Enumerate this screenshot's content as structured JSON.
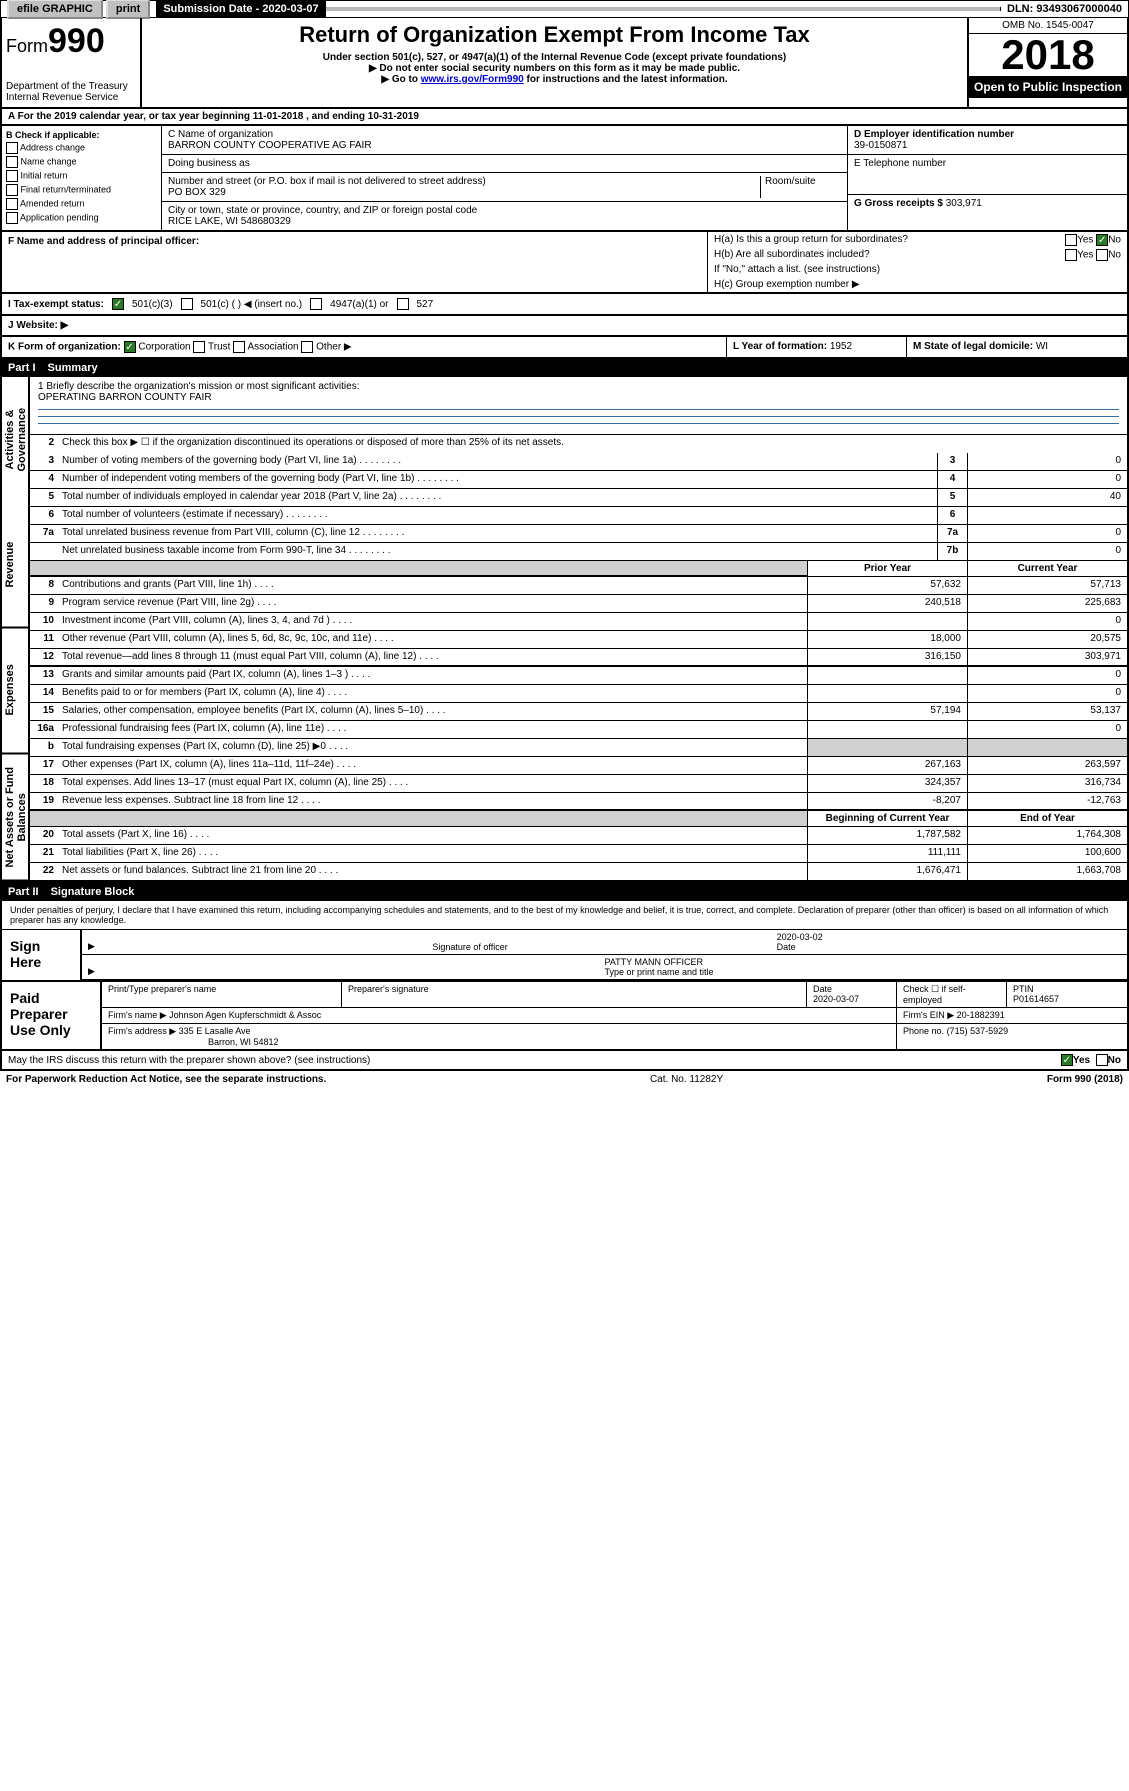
{
  "topbar": {
    "efile": "efile GRAPHIC",
    "print": "print",
    "sub_label": "Submission Date - 2020-03-07",
    "dln": "DLN: 93493067000040"
  },
  "header": {
    "form_prefix": "Form",
    "form_num": "990",
    "dept": "Department of the Treasury",
    "irs": "Internal Revenue Service",
    "title": "Return of Organization Exempt From Income Tax",
    "sub1": "Under section 501(c), 527, or 4947(a)(1) of the Internal Revenue Code (except private foundations)",
    "sub2": "▶ Do not enter social security numbers on this form as it may be made public.",
    "sub3_pre": "▶ Go to ",
    "sub3_link": "www.irs.gov/Form990",
    "sub3_post": " for instructions and the latest information.",
    "omb": "OMB No. 1545-0047",
    "year": "2018",
    "open": "Open to Public Inspection"
  },
  "row_a": "A For the 2019 calendar year, or tax year beginning 11-01-2018   , and ending 10-31-2019",
  "box_b": {
    "title": "B Check if applicable:",
    "opts": [
      "Address change",
      "Name change",
      "Initial return",
      "Final return/terminated",
      "Amended return",
      "Application pending"
    ]
  },
  "box_c": {
    "name_label": "C Name of organization",
    "name": "BARRON COUNTY COOPERATIVE AG FAIR",
    "dba_label": "Doing business as",
    "addr_label": "Number and street (or P.O. box if mail is not delivered to street address)",
    "addr": "PO BOX 329",
    "room_label": "Room/suite",
    "city_label": "City or town, state or province, country, and ZIP or foreign postal code",
    "city": "RICE LAKE, WI  548680329"
  },
  "box_d": {
    "label": "D Employer identification number",
    "val": "39-0150871"
  },
  "box_e": {
    "label": "E Telephone number"
  },
  "box_g": {
    "label": "G Gross receipts $",
    "val": "303,971"
  },
  "box_f": "F  Name and address of principal officer:",
  "box_h": {
    "a": "H(a)  Is this a group return for subordinates?",
    "b": "H(b)  Are all subordinates included?",
    "b_note": "If \"No,\" attach a list. (see instructions)",
    "c": "H(c)  Group exemption number ▶",
    "yes": "Yes",
    "no": "No"
  },
  "tax_status": {
    "label": "I  Tax-exempt status:",
    "c3": "501(c)(3)",
    "c": "501(c) (   ) ◀ (insert no.)",
    "a1": "4947(a)(1) or",
    "s527": "527"
  },
  "website": "J  Website: ▶",
  "row_k": {
    "k": "K Form of organization:",
    "corp": "Corporation",
    "trust": "Trust",
    "assoc": "Association",
    "other": "Other ▶",
    "l_label": "L Year of formation:",
    "l_val": "1952",
    "m_label": "M State of legal domicile:",
    "m_val": "WI"
  },
  "part1": {
    "label": "Part I",
    "title": "Summary",
    "sides": [
      "Activities & Governance",
      "Revenue",
      "Expenses",
      "Net Assets or Fund Balances"
    ],
    "mission_label": "1  Briefly describe the organization's mission or most significant activities:",
    "mission": "OPERATING BARRON COUNTY FAIR",
    "line2": "Check this box ▶ ☐  if the organization discontinued its operations or disposed of more than 25% of its net assets.",
    "lines_single": [
      {
        "n": "3",
        "d": "Number of voting members of the governing body (Part VI, line 1a)",
        "box": "3",
        "v": "0"
      },
      {
        "n": "4",
        "d": "Number of independent voting members of the governing body (Part VI, line 1b)",
        "box": "4",
        "v": "0"
      },
      {
        "n": "5",
        "d": "Total number of individuals employed in calendar year 2018 (Part V, line 2a)",
        "box": "5",
        "v": "40"
      },
      {
        "n": "6",
        "d": "Total number of volunteers (estimate if necessary)",
        "box": "6",
        "v": ""
      },
      {
        "n": "7a",
        "d": "Total unrelated business revenue from Part VIII, column (C), line 12",
        "box": "7a",
        "v": "0"
      },
      {
        "n": "",
        "d": "Net unrelated business taxable income from Form 990-T, line 34",
        "box": "7b",
        "v": "0"
      }
    ],
    "col_headers": {
      "prior": "Prior Year",
      "current": "Current Year",
      "begin": "Beginning of Current Year",
      "end": "End of Year"
    },
    "revenue": [
      {
        "n": "8",
        "d": "Contributions and grants (Part VIII, line 1h)",
        "p": "57,632",
        "c": "57,713"
      },
      {
        "n": "9",
        "d": "Program service revenue (Part VIII, line 2g)",
        "p": "240,518",
        "c": "225,683"
      },
      {
        "n": "10",
        "d": "Investment income (Part VIII, column (A), lines 3, 4, and 7d )",
        "p": "",
        "c": "0"
      },
      {
        "n": "11",
        "d": "Other revenue (Part VIII, column (A), lines 5, 6d, 8c, 9c, 10c, and 11e)",
        "p": "18,000",
        "c": "20,575"
      },
      {
        "n": "12",
        "d": "Total revenue—add lines 8 through 11 (must equal Part VIII, column (A), line 12)",
        "p": "316,150",
        "c": "303,971"
      }
    ],
    "expenses": [
      {
        "n": "13",
        "d": "Grants and similar amounts paid (Part IX, column (A), lines 1–3 )",
        "p": "",
        "c": "0"
      },
      {
        "n": "14",
        "d": "Benefits paid to or for members (Part IX, column (A), line 4)",
        "p": "",
        "c": "0"
      },
      {
        "n": "15",
        "d": "Salaries, other compensation, employee benefits (Part IX, column (A), lines 5–10)",
        "p": "57,194",
        "c": "53,137"
      },
      {
        "n": "16a",
        "d": "Professional fundraising fees (Part IX, column (A), line 11e)",
        "p": "",
        "c": "0"
      },
      {
        "n": "b",
        "d": "Total fundraising expenses (Part IX, column (D), line 25) ▶0",
        "p": "__shaded__",
        "c": "__shaded__"
      },
      {
        "n": "17",
        "d": "Other expenses (Part IX, column (A), lines 11a–11d, 11f–24e)",
        "p": "267,163",
        "c": "263,597"
      },
      {
        "n": "18",
        "d": "Total expenses. Add lines 13–17 (must equal Part IX, column (A), line 25)",
        "p": "324,357",
        "c": "316,734"
      },
      {
        "n": "19",
        "d": "Revenue less expenses. Subtract line 18 from line 12",
        "p": "-8,207",
        "c": "-12,763"
      }
    ],
    "netassets": [
      {
        "n": "20",
        "d": "Total assets (Part X, line 16)",
        "p": "1,787,582",
        "c": "1,764,308"
      },
      {
        "n": "21",
        "d": "Total liabilities (Part X, line 26)",
        "p": "111,111",
        "c": "100,600"
      },
      {
        "n": "22",
        "d": "Net assets or fund balances. Subtract line 21 from line 20",
        "p": "1,676,471",
        "c": "1,663,708"
      }
    ]
  },
  "part2": {
    "label": "Part II",
    "title": "Signature Block",
    "perjury": "Under penalties of perjury, I declare that I have examined this return, including accompanying schedules and statements, and to the best of my knowledge and belief, it is true, correct, and complete. Declaration of preparer (other than officer) is based on all information of which preparer has any knowledge.",
    "sign_here": "Sign Here",
    "sig_officer": "Signature of officer",
    "sig_date": "2020-03-02",
    "date_label": "Date",
    "officer_name": "PATTY MANN  OFFICER",
    "type_name": "Type or print name and title",
    "paid": "Paid Preparer Use Only",
    "prep_name_label": "Print/Type preparer's name",
    "prep_sig_label": "Preparer's signature",
    "prep_date_label": "Date",
    "prep_date": "2020-03-07",
    "check_self": "Check ☐ if self-employed",
    "ptin_label": "PTIN",
    "ptin": "P01614657",
    "firm_name_label": "Firm's name    ▶",
    "firm_name": "Johnson Agen Kupferschmidt & Assoc",
    "firm_ein_label": "Firm's EIN ▶",
    "firm_ein": "20-1882391",
    "firm_addr_label": "Firm's address ▶",
    "firm_addr1": "335 E Lasalle Ave",
    "firm_addr2": "Barron, WI  54812",
    "phone_label": "Phone no.",
    "phone": "(715) 537-5929"
  },
  "discuss": {
    "q": "May the IRS discuss this return with the preparer shown above? (see instructions)",
    "yes": "Yes",
    "no": "No"
  },
  "footer": {
    "left": "For Paperwork Reduction Act Notice, see the separate instructions.",
    "mid": "Cat. No. 11282Y",
    "right": "Form 990 (2018)"
  }
}
